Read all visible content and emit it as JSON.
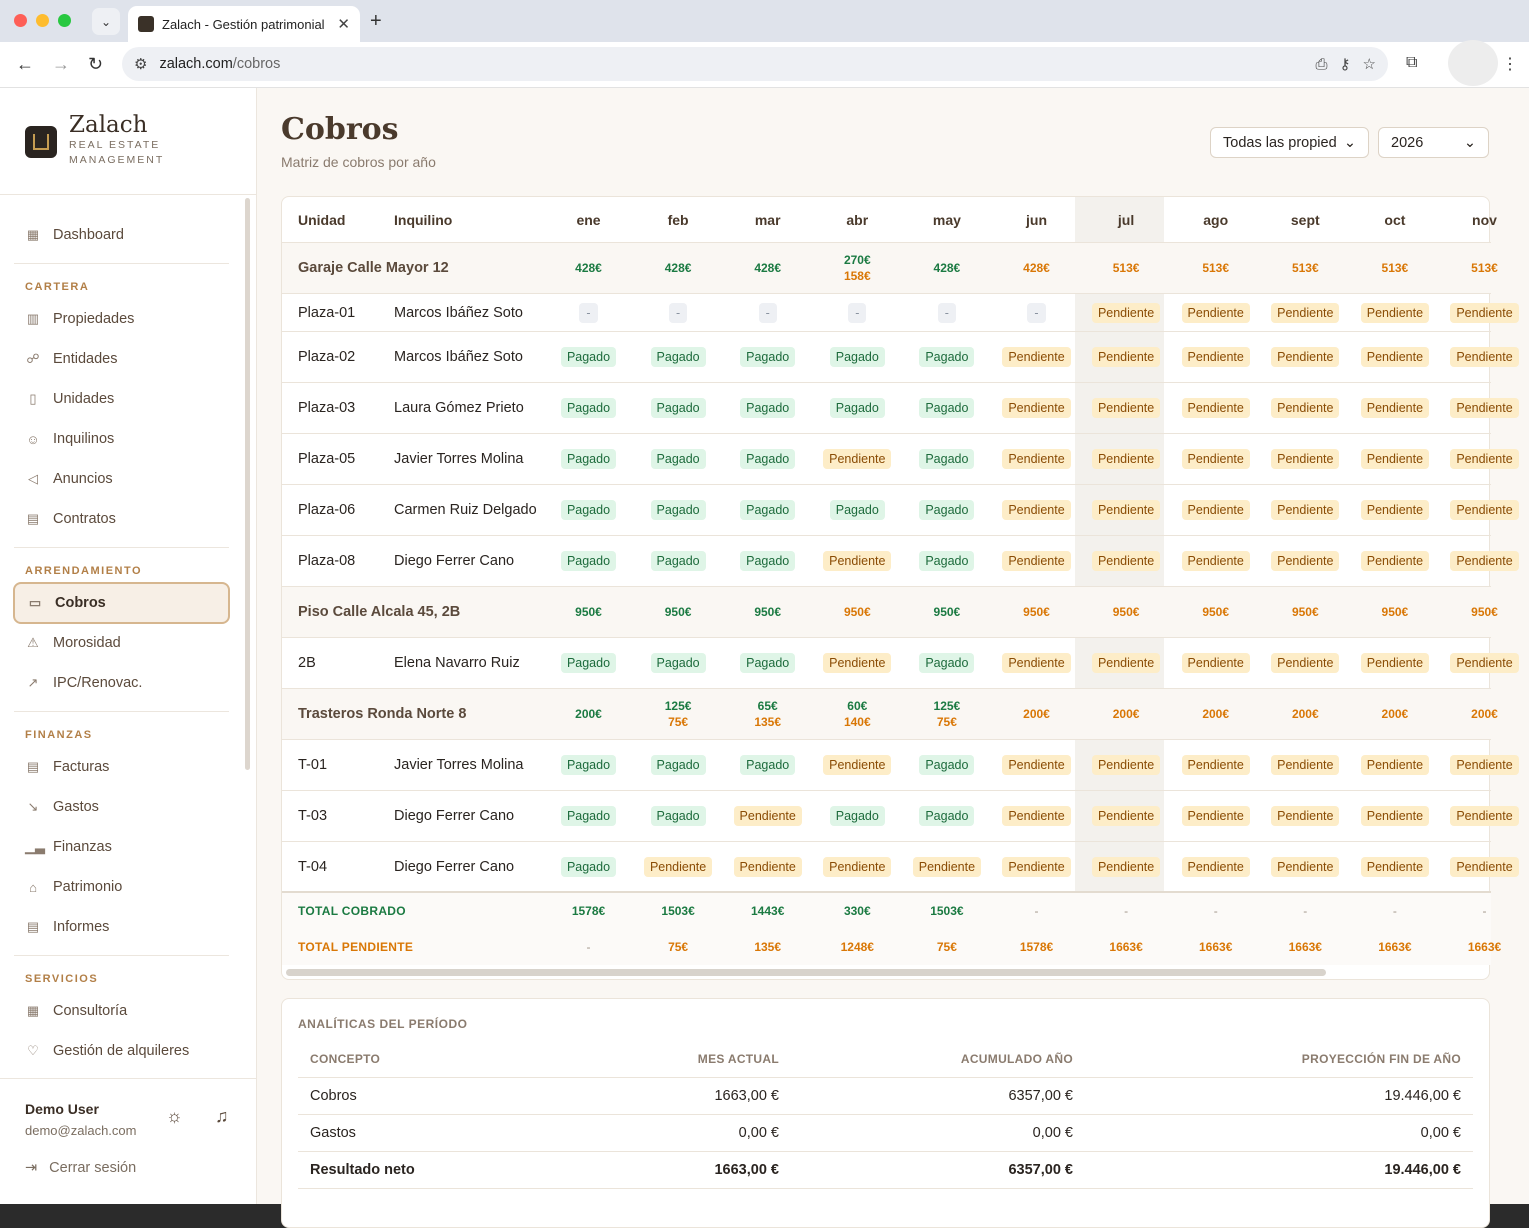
{
  "browser": {
    "tab_title": "Zalach - Gestión patrimonial",
    "url_host": "zalach.com",
    "url_path": "/cobros"
  },
  "brand": {
    "name": "Zalach",
    "subtitle": "REAL ESTATE MANAGEMENT"
  },
  "sidebar": {
    "dashboard": "Dashboard",
    "sections": {
      "cartera": "CARTERA",
      "arrendamiento": "ARRENDAMIENTO",
      "finanzas": "FINANZAS",
      "servicios": "SERVICIOS"
    },
    "cartera": [
      "Propiedades",
      "Entidades",
      "Unidades",
      "Inquilinos",
      "Anuncios",
      "Contratos"
    ],
    "arrendamiento": [
      "Cobros",
      "Morosidad",
      "IPC/Renovac."
    ],
    "finanzas": [
      "Facturas",
      "Gastos",
      "Finanzas",
      "Patrimonio",
      "Informes"
    ],
    "servicios": [
      "Consultoría",
      "Gestión de alquileres"
    ],
    "user": {
      "name": "Demo User",
      "email": "demo@zalach.com"
    },
    "logout": "Cerrar sesión"
  },
  "page": {
    "title": "Cobros",
    "subtitle": "Matriz de cobros por año",
    "property_filter": "Todas las propied",
    "year": "2026"
  },
  "matrix": {
    "col_unit": "Unidad",
    "col_tenant": "Inquilino",
    "months": [
      "ene",
      "feb",
      "mar",
      "abr",
      "may",
      "jun",
      "jul",
      "ago",
      "sept",
      "oct",
      "nov"
    ],
    "rows": [
      {
        "type": "group",
        "unit": "Garaje Calle Mayor 12",
        "cells": [
          [
            "428€",
            "g"
          ],
          [
            "428€",
            "g"
          ],
          [
            "428€",
            "g"
          ],
          [
            "270€|158€",
            "go"
          ],
          [
            "428€",
            "g"
          ],
          [
            "428€",
            "o"
          ],
          [
            "513€",
            "o"
          ],
          [
            "513€",
            "o"
          ],
          [
            "513€",
            "o"
          ],
          [
            "513€",
            "o"
          ],
          [
            "513€",
            "o"
          ]
        ]
      },
      {
        "type": "unit",
        "unit": "Plaza-01",
        "tenant": "Marcos Ibáñez Soto",
        "cells": [
          "-",
          "-",
          "-",
          "-",
          "-",
          "-",
          "Pendiente",
          "Pendiente",
          "Pendiente",
          "Pendiente",
          "Pendiente"
        ]
      },
      {
        "type": "unit",
        "unit": "Plaza-02",
        "tenant": "Marcos Ibáñez Soto",
        "cells": [
          "Pagado",
          "Pagado",
          "Pagado",
          "Pagado",
          "Pagado",
          "Pendiente",
          "Pendiente",
          "Pendiente",
          "Pendiente",
          "Pendiente",
          "Pendiente"
        ]
      },
      {
        "type": "unit",
        "unit": "Plaza-03",
        "tenant": "Laura Gómez Prieto",
        "cells": [
          "Pagado",
          "Pagado",
          "Pagado",
          "Pagado",
          "Pagado",
          "Pendiente",
          "Pendiente",
          "Pendiente",
          "Pendiente",
          "Pendiente",
          "Pendiente"
        ]
      },
      {
        "type": "unit",
        "unit": "Plaza-05",
        "tenant": "Javier Torres Molina",
        "cells": [
          "Pagado",
          "Pagado",
          "Pagado",
          "Pendiente",
          "Pagado",
          "Pendiente",
          "Pendiente",
          "Pendiente",
          "Pendiente",
          "Pendiente",
          "Pendiente"
        ]
      },
      {
        "type": "unit",
        "unit": "Plaza-06",
        "tenant": "Carmen Ruiz Delgado",
        "cells": [
          "Pagado",
          "Pagado",
          "Pagado",
          "Pagado",
          "Pagado",
          "Pendiente",
          "Pendiente",
          "Pendiente",
          "Pendiente",
          "Pendiente",
          "Pendiente"
        ]
      },
      {
        "type": "unit",
        "unit": "Plaza-08",
        "tenant": "Diego Ferrer Cano",
        "cells": [
          "Pagado",
          "Pagado",
          "Pagado",
          "Pendiente",
          "Pagado",
          "Pendiente",
          "Pendiente",
          "Pendiente",
          "Pendiente",
          "Pendiente",
          "Pendiente"
        ]
      },
      {
        "type": "group",
        "unit": "Piso Calle Alcala 45, 2B",
        "cells": [
          [
            "950€",
            "g"
          ],
          [
            "950€",
            "g"
          ],
          [
            "950€",
            "g"
          ],
          [
            "950€",
            "o"
          ],
          [
            "950€",
            "g"
          ],
          [
            "950€",
            "o"
          ],
          [
            "950€",
            "o"
          ],
          [
            "950€",
            "o"
          ],
          [
            "950€",
            "o"
          ],
          [
            "950€",
            "o"
          ],
          [
            "950€",
            "o"
          ]
        ]
      },
      {
        "type": "unit",
        "unit": "2B",
        "tenant": "Elena Navarro Ruiz",
        "cells": [
          "Pagado",
          "Pagado",
          "Pagado",
          "Pendiente",
          "Pagado",
          "Pendiente",
          "Pendiente",
          "Pendiente",
          "Pendiente",
          "Pendiente",
          "Pendiente"
        ]
      },
      {
        "type": "group",
        "unit": "Trasteros Ronda Norte 8",
        "cells": [
          [
            "200€",
            "g"
          ],
          [
            "125€|75€",
            "go"
          ],
          [
            "65€|135€",
            "go"
          ],
          [
            "60€|140€",
            "go"
          ],
          [
            "125€|75€",
            "go"
          ],
          [
            "200€",
            "o"
          ],
          [
            "200€",
            "o"
          ],
          [
            "200€",
            "o"
          ],
          [
            "200€",
            "o"
          ],
          [
            "200€",
            "o"
          ],
          [
            "200€",
            "o"
          ]
        ]
      },
      {
        "type": "unit",
        "unit": "T-01",
        "tenant": "Javier Torres Molina",
        "cells": [
          "Pagado",
          "Pagado",
          "Pagado",
          "Pendiente",
          "Pagado",
          "Pendiente",
          "Pendiente",
          "Pendiente",
          "Pendiente",
          "Pendiente",
          "Pendiente"
        ]
      },
      {
        "type": "unit",
        "unit": "T-03",
        "tenant": "Diego Ferrer Cano",
        "cells": [
          "Pagado",
          "Pagado",
          "Pendiente",
          "Pagado",
          "Pagado",
          "Pendiente",
          "Pendiente",
          "Pendiente",
          "Pendiente",
          "Pendiente",
          "Pendiente"
        ]
      },
      {
        "type": "unit",
        "unit": "T-04",
        "tenant": "Diego Ferrer Cano",
        "cells": [
          "Pagado",
          "Pendiente",
          "Pendiente",
          "Pendiente",
          "Pendiente",
          "Pendiente",
          "Pendiente",
          "Pendiente",
          "Pendiente",
          "Pendiente",
          "Pendiente"
        ]
      }
    ],
    "total_cobrado_label": "TOTAL COBRADO",
    "total_cobrado": [
      "1578€",
      "1503€",
      "1443€",
      "330€",
      "1503€",
      "-",
      "-",
      "-",
      "-",
      "-",
      "-"
    ],
    "total_pendiente_label": "TOTAL PENDIENTE",
    "total_pendiente": [
      "-",
      "75€",
      "135€",
      "1248€",
      "75€",
      "1578€",
      "1663€",
      "1663€",
      "1663€",
      "1663€",
      "1663€"
    ]
  },
  "analytics": {
    "title": "ANALÍTICAS DEL PERÍODO",
    "headers": [
      "CONCEPTO",
      "MES ACTUAL",
      "ACUMULADO AÑO",
      "PROYECCIÓN FIN DE AÑO"
    ],
    "rows": [
      [
        "Cobros",
        "1663,00 €",
        "6357,00 €",
        "19.446,00 €"
      ],
      [
        "Gastos",
        "0,00 €",
        "0,00 €",
        "0,00 €"
      ],
      [
        "Resultado neto",
        "1663,00 €",
        "6357,00 €",
        "19.446,00 €"
      ]
    ]
  },
  "colors": {
    "accent": "#b27f47",
    "paid_bg": "#dff5e7",
    "pending_bg": "#fdedc8",
    "paid_text": "#1b7a42",
    "pending_text": "#d97706"
  }
}
